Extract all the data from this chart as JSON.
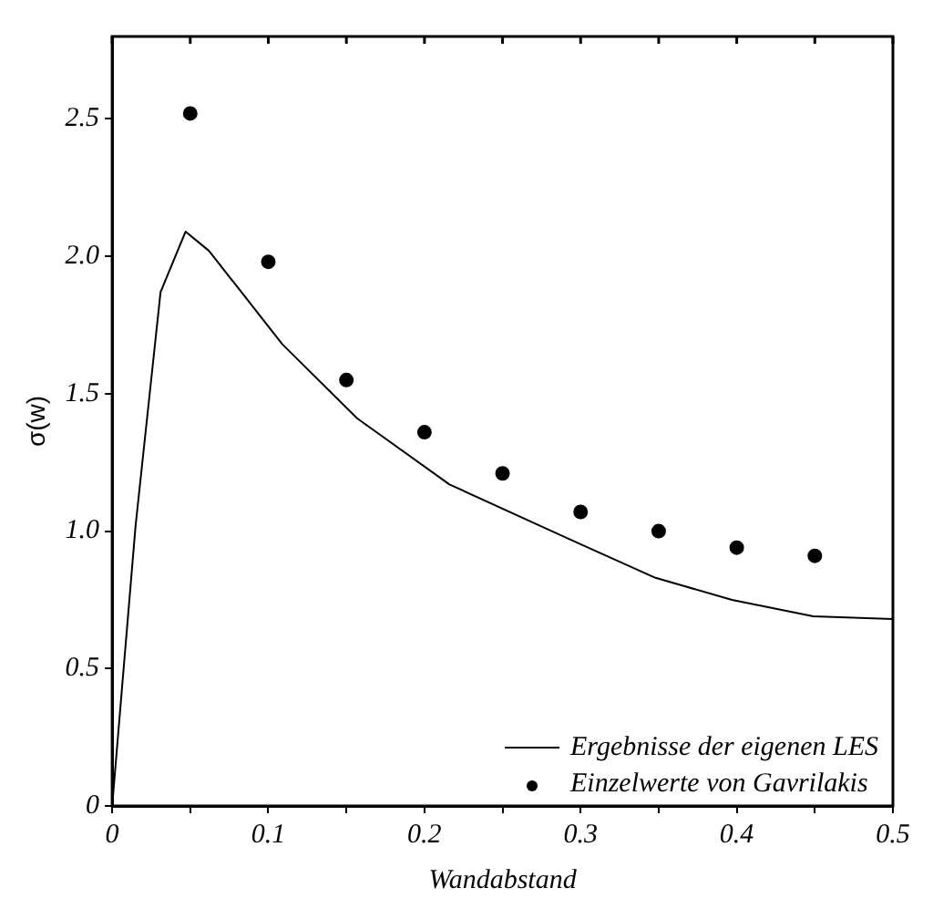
{
  "chart_data": {
    "type": "line",
    "xlabel": "Wandabstand",
    "ylabel": "σ(w)",
    "xlim": [
      0,
      0.5
    ],
    "ylim": [
      0,
      2.8
    ],
    "xticks": [
      0,
      {
        "value": 0.05,
        "label": null
      },
      0.1,
      {
        "value": 0.15,
        "label": null
      },
      0.2,
      {
        "value": 0.25,
        "label": null
      },
      0.3,
      {
        "value": 0.35,
        "label": null
      },
      0.4,
      {
        "value": 0.45,
        "label": null
      },
      0.5
    ],
    "yticks": [
      0,
      0.5,
      {
        "value": 1,
        "label": "1.0"
      },
      {
        "value": 1.5,
        "label": "1.5"
      },
      {
        "value": 2,
        "label": "2.0"
      },
      {
        "value": 2.5,
        "label": "2.5"
      }
    ],
    "grid": false,
    "legend": "bottom right",
    "series": [
      {
        "name": "Ergebnisse der eigenen LES",
        "type": "line",
        "color": "#000000",
        "marker": "none",
        "line_style": "solid",
        "x": [
          0,
          0.015,
          0.031,
          0.047,
          0.062,
          0.109,
          0.157,
          0.216,
          0.297,
          0.348,
          0.397,
          0.449,
          0.5
        ],
        "values": [
          0,
          1.02,
          1.87,
          2.09,
          2.02,
          1.68,
          1.41,
          1.17,
          0.96,
          0.83,
          0.75,
          0.69,
          0.68
        ]
      },
      {
        "name": "Einzelwerte von Gavrilakis",
        "type": "scatter",
        "color": "#000000",
        "marker": "circle",
        "x": [
          0.05,
          0.1,
          0.15,
          0.2,
          0.25,
          0.3,
          0.35,
          0.4,
          0.45
        ],
        "values": [
          2.52,
          1.98,
          1.55,
          1.36,
          1.21,
          1.07,
          1.0,
          0.94,
          0.91
        ]
      }
    ]
  }
}
